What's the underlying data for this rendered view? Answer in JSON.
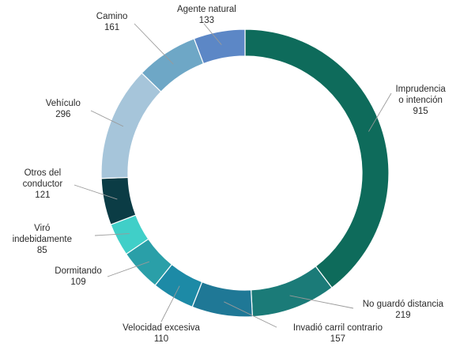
{
  "chart_data": {
    "type": "pie",
    "variant": "donut",
    "title": "",
    "slices": [
      {
        "label": [
          "Imprudencia",
          "o intención"
        ],
        "value": 915,
        "color": "#0e6b5b"
      },
      {
        "label": [
          "No guardó distancia"
        ],
        "value": 219,
        "color": "#1b7b78"
      },
      {
        "label": [
          "Invadió carril contrario"
        ],
        "value": 157,
        "color": "#1f7896"
      },
      {
        "label": [
          "Velocidad excesiva"
        ],
        "value": 110,
        "color": "#1d8aa6"
      },
      {
        "label": [
          "Dormitando"
        ],
        "value": 109,
        "color": "#2a9fa8"
      },
      {
        "label": [
          "Viró",
          "indebidamente"
        ],
        "value": 85,
        "color": "#40cfc8"
      },
      {
        "label": [
          "Otros del",
          "conductor"
        ],
        "value": 121,
        "color": "#0b3c45"
      },
      {
        "label": [
          "Vehículo"
        ],
        "value": 296,
        "color": "#a6c5da"
      },
      {
        "label": [
          "Camino"
        ],
        "value": 161,
        "color": "#6ea7c6"
      },
      {
        "label": [
          "Agente natural"
        ],
        "value": 133,
        "color": "#5c87c6"
      }
    ]
  }
}
